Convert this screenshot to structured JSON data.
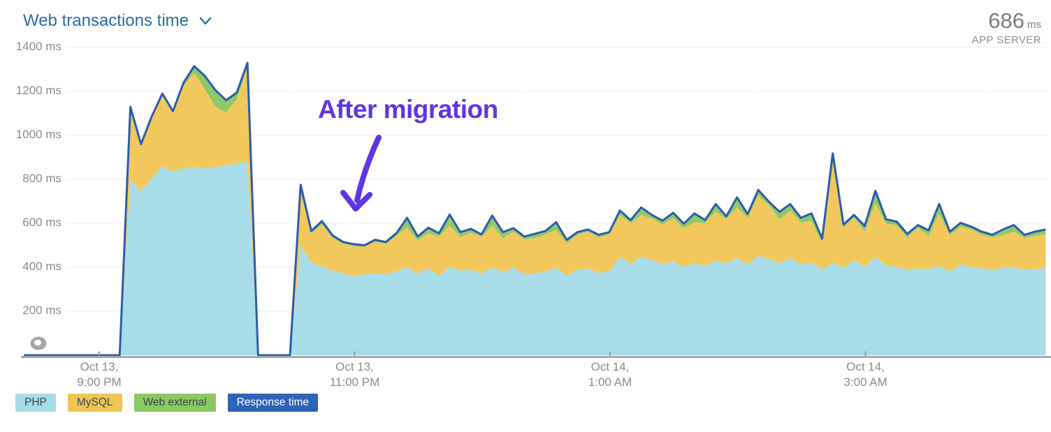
{
  "header": {
    "title": "Web transactions time",
    "chevron_icon": "chevron-down",
    "current_value": "686",
    "current_value_unit": "ms",
    "current_value_label": "APP SERVER",
    "title_color": "#256f9f"
  },
  "annotation": {
    "text": "After migration",
    "color": "#5f35e3"
  },
  "chart_data": {
    "type": "area",
    "stacked": true,
    "title": "Web transactions time",
    "xlabel": "",
    "ylabel": "ms",
    "ylim": [
      0,
      1400
    ],
    "grid": true,
    "legend_position": "bottom",
    "yticks": [
      {
        "value": 1400,
        "label": "1400 ms"
      },
      {
        "value": 1200,
        "label": "1200 ms"
      },
      {
        "value": 1000,
        "label": "1000 ms"
      },
      {
        "value": 800,
        "label": "800 ms"
      },
      {
        "value": 600,
        "label": "600 ms"
      },
      {
        "value": 400,
        "label": "400 ms"
      },
      {
        "value": 200,
        "label": "200 ms"
      }
    ],
    "xticks": [
      {
        "line1": "Oct 13,",
        "line2": "9:00 PM"
      },
      {
        "line1": "Oct 13,",
        "line2": "11:00 PM"
      },
      {
        "line1": "Oct 14,",
        "line2": "1:00 AM"
      },
      {
        "line1": "Oct 14,",
        "line2": "3:00 AM"
      }
    ],
    "x_minutes_per_point": 5,
    "series": [
      {
        "name": "PHP",
        "kind": "area",
        "color": "#a9dce9",
        "legend_color": "#a7dbe8",
        "legend_text_color": "#37474f",
        "values": [
          0,
          0,
          0,
          0,
          0,
          0,
          0,
          0,
          0,
          0,
          0,
          0,
          800,
          745,
          805,
          860,
          835,
          850,
          855,
          850,
          855,
          865,
          870,
          885,
          0,
          0,
          0,
          0,
          500,
          420,
          405,
          385,
          370,
          362,
          368,
          372,
          368,
          382,
          400,
          372,
          395,
          362,
          402,
          385,
          388,
          372,
          398,
          378,
          398,
          368,
          372,
          380,
          398,
          362,
          388,
          395,
          375,
          380,
          450,
          415,
          448,
          435,
          412,
          428,
          402,
          418,
          405,
          432,
          418,
          442,
          412,
          452,
          438,
          418,
          442,
          412,
          422,
          390,
          420,
          398,
          432,
          402,
          448,
          408,
          402,
          388,
          395,
          392,
          405,
          382,
          412,
          402,
          395,
          388,
          398,
          402,
          388,
          392,
          398
        ]
      },
      {
        "name": "MySQL",
        "kind": "area",
        "color": "#f2c85c",
        "legend_color": "#f0c554",
        "legend_text_color": "#37474f",
        "values": [
          0,
          0,
          0,
          0,
          0,
          0,
          0,
          0,
          0,
          0,
          0,
          0,
          330,
          215,
          280,
          325,
          270,
          375,
          430,
          360,
          275,
          240,
          295,
          430,
          0,
          0,
          0,
          0,
          265,
          135,
          190,
          150,
          137,
          135,
          126,
          143,
          139,
          163,
          180,
          150,
          160,
          178,
          188,
          153,
          169,
          166,
          192,
          154,
          165,
          160,
          160,
          170,
          172,
          148,
          160,
          167,
          161,
          170,
          188,
          185,
          189,
          188,
          182,
          195,
          176,
          187,
          195,
          221,
          202,
          231,
          212,
          275,
          245,
          199,
          216,
          191,
          188,
          122,
          488,
          182,
          194,
          161,
          245,
          190,
          191,
          146,
          185,
          151,
          238,
          165,
          172,
          171,
          152,
          148,
          149,
          160,
          145,
          152,
          152
        ]
      },
      {
        "name": "Web external",
        "kind": "area",
        "color": "#8fc967",
        "legend_color": "#8cc861",
        "legend_text_color": "#37474f",
        "values": [
          0,
          0,
          0,
          0,
          0,
          0,
          0,
          0,
          0,
          0,
          0,
          0,
          0,
          0,
          0,
          5,
          5,
          15,
          30,
          60,
          75,
          55,
          30,
          15,
          0,
          0,
          0,
          0,
          10,
          10,
          15,
          10,
          8,
          8,
          6,
          10,
          8,
          10,
          45,
          18,
          25,
          15,
          50,
          22,
          18,
          12,
          45,
          28,
          15,
          12,
          20,
          15,
          35,
          15,
          12,
          10,
          12,
          10,
          20,
          15,
          35,
          15,
          18,
          25,
          20,
          40,
          15,
          35,
          12,
          45,
          18,
          25,
          15,
          35,
          30,
          22,
          35,
          18,
          10,
          15,
          12,
          25,
          55,
          20,
          15,
          18,
          12,
          25,
          45,
          15,
          18,
          12,
          15,
          12,
          25,
          30,
          15,
          18,
          22
        ]
      },
      {
        "name": "Response time",
        "kind": "line",
        "color": "#2a5cad",
        "legend_color": "#2e63b8",
        "legend_text_color": "#ffffff",
        "values": [
          0,
          0,
          0,
          0,
          0,
          0,
          0,
          0,
          0,
          0,
          0,
          0,
          1130,
          960,
          1085,
          1190,
          1110,
          1240,
          1315,
          1270,
          1205,
          1160,
          1195,
          1330,
          0,
          0,
          0,
          0,
          775,
          565,
          610,
          545,
          515,
          505,
          500,
          525,
          515,
          555,
          625,
          540,
          580,
          555,
          640,
          560,
          575,
          550,
          635,
          560,
          578,
          540,
          552,
          565,
          605,
          525,
          560,
          572,
          548,
          560,
          658,
          615,
          672,
          638,
          612,
          648,
          598,
          645,
          615,
          688,
          632,
          718,
          642,
          752,
          698,
          652,
          688,
          625,
          645,
          530,
          918,
          595,
          638,
          588,
          748,
          618,
          608,
          552,
          592,
          568,
          688,
          562,
          602,
          585,
          562,
          548,
          572,
          592,
          548,
          562,
          572
        ]
      }
    ]
  }
}
